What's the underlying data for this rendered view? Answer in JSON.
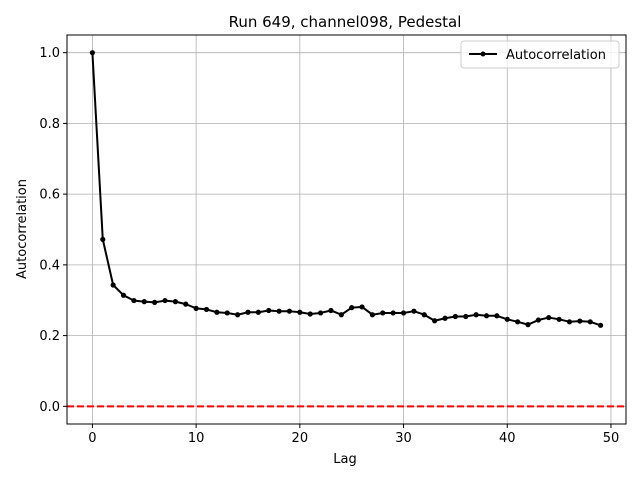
{
  "chart_data": {
    "type": "line",
    "title": "Run 649, channel098, Pedestal",
    "xlabel": "Lag",
    "ylabel": "Autocorrelation",
    "xlim": [
      -2.45,
      51.45
    ],
    "ylim": [
      -0.05,
      1.05
    ],
    "xticks": [
      0,
      10,
      20,
      30,
      40,
      50
    ],
    "yticks": [
      0.0,
      0.2,
      0.4,
      0.6,
      0.8,
      1.0
    ],
    "xtick_labels": [
      "0",
      "10",
      "20",
      "30",
      "40",
      "50"
    ],
    "ytick_labels": [
      "0.0",
      "0.2",
      "0.4",
      "0.6",
      "0.8",
      "1.0"
    ],
    "grid": true,
    "legend_position": "top-right",
    "series": [
      {
        "name": "Autocorrelation",
        "color": "#000000",
        "marker": "circle",
        "x": [
          0,
          1,
          2,
          3,
          4,
          5,
          6,
          7,
          8,
          9,
          10,
          11,
          12,
          13,
          14,
          15,
          16,
          17,
          18,
          19,
          20,
          21,
          22,
          23,
          24,
          25,
          26,
          27,
          28,
          29,
          30,
          31,
          32,
          33,
          34,
          35,
          36,
          37,
          38,
          39,
          40,
          41,
          42,
          43,
          44,
          45,
          46,
          47,
          48,
          49
        ],
        "values": [
          1.0,
          0.472,
          0.343,
          0.314,
          0.299,
          0.296,
          0.294,
          0.299,
          0.296,
          0.289,
          0.277,
          0.274,
          0.266,
          0.264,
          0.259,
          0.266,
          0.266,
          0.271,
          0.269,
          0.269,
          0.266,
          0.261,
          0.264,
          0.271,
          0.259,
          0.279,
          0.281,
          0.259,
          0.264,
          0.264,
          0.264,
          0.269,
          0.259,
          0.242,
          0.249,
          0.254,
          0.254,
          0.259,
          0.256,
          0.256,
          0.246,
          0.239,
          0.231,
          0.244,
          0.251,
          0.246,
          0.239,
          0.241,
          0.239,
          0.229
        ]
      }
    ],
    "reference_line": {
      "y": 0.0,
      "color": "#ff0000",
      "style": "dashed"
    }
  }
}
